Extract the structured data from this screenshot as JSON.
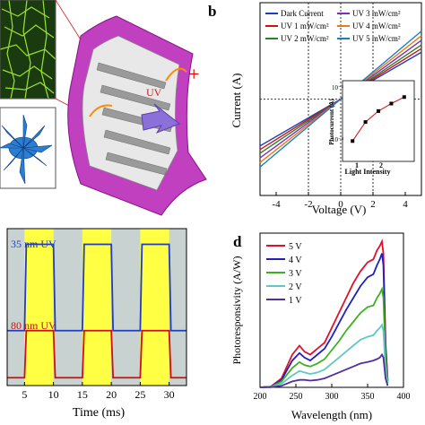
{
  "panels": {
    "a": {
      "uv_label": "UV",
      "plus_sign": "+"
    },
    "b": {
      "letter": "b"
    },
    "c": {
      "letter": ""
    },
    "d": {
      "letter": "d"
    }
  },
  "colors": {
    "dark": "#1f3fbf",
    "uv1": "#7b2fbf",
    "uv2": "#d01010",
    "uv3": "#2a7f2a",
    "uv4": "#f07810",
    "uv5": "#1a7fc0",
    "d5": "#e0102a",
    "d4": "#2020c0",
    "d3": "#40b020",
    "d2": "#60c8c0",
    "d1": "#5030a0",
    "yellow": "#ffff44",
    "gray": "#c8d2d0"
  },
  "chart_data": [
    {
      "type": "line",
      "panel": "b",
      "title": "",
      "xlabel": "Voltage (V)",
      "ylabel": "Current (A)",
      "xlim": [
        -5,
        5
      ],
      "ylim": [
        -0.021,
        0.021
      ],
      "x_ticks": [
        "-4",
        "-2",
        "0",
        "2",
        "4"
      ],
      "series": [
        {
          "name": "Dark Current",
          "color_key": "dark",
          "x": [
            -5,
            5
          ],
          "y": [
            -0.0102,
            0.0102
          ]
        },
        {
          "name": "UV 1 mW/cm²",
          "color_key": "uv2",
          "x": [
            -5,
            5
          ],
          "y": [
            -0.011,
            0.011
          ]
        },
        {
          "name": "UV 2 mW/cm²",
          "color_key": "uv3",
          "x": [
            -5,
            5
          ],
          "y": [
            -0.0118,
            0.0118
          ]
        },
        {
          "name": "UV 3 mW/cm²",
          "color_key": "uv1",
          "x": [
            -5,
            5
          ],
          "y": [
            -0.0128,
            0.0128
          ]
        },
        {
          "name": "UV 4 mW/cm²",
          "color_key": "uv4",
          "x": [
            -5,
            5
          ],
          "y": [
            -0.0138,
            0.0138
          ]
        },
        {
          "name": "UV 5 mW/cm²",
          "color_key": "uv5",
          "x": [
            -5,
            5
          ],
          "y": [
            -0.0148,
            0.0148
          ]
        }
      ],
      "legend": {
        "left": [
          "Dark Current",
          "UV 1 mW/cm²",
          "UV 2 mW/cm²"
        ],
        "right": [
          "UV 3 mW/cm²",
          "UV 4 mW/cm²",
          "UV 5 mW/cm²"
        ]
      },
      "inset": {
        "xlabel": "Light Intensity",
        "ylabel": "Photocurrent (A)",
        "y_ticks": [
          "10⁻³",
          "10⁻⁴"
        ],
        "x_ticks": [
          "1",
          "2"
        ],
        "x": [
          1,
          2,
          3,
          4,
          5
        ],
        "y_log": [
          -4.1,
          -3.72,
          -3.5,
          -3.35,
          -3.22
        ]
      }
    },
    {
      "type": "line",
      "panel": "c",
      "xlabel": "Time (ms)",
      "ylabel": "",
      "xlim": [
        2,
        33
      ],
      "x_ticks": [
        "5",
        "10",
        "15",
        "20",
        "25",
        "30"
      ],
      "annotations": [
        "35 nm UV",
        "80 nm UV"
      ],
      "on_intervals": [
        [
          5,
          10
        ],
        [
          15,
          20
        ],
        [
          25,
          30
        ]
      ],
      "series": [
        {
          "name": "35 nm UV",
          "color_key": "dark",
          "low": 0.35,
          "high": 0.9
        },
        {
          "name": "80 nm UV",
          "color_key": "uv2",
          "low": 0.05,
          "high": 0.35
        }
      ]
    },
    {
      "type": "line",
      "panel": "d",
      "xlabel": "Wavelength (nm)",
      "ylabel": "Photoresponsivity (A/W)",
      "xlim": [
        200,
        400
      ],
      "x_ticks": [
        "200",
        "250",
        "300",
        "350",
        "400"
      ],
      "ymax": 1.0,
      "x": [
        200,
        215,
        230,
        245,
        255,
        262,
        270,
        280,
        290,
        300,
        310,
        320,
        330,
        340,
        350,
        358,
        363,
        367,
        370,
        372,
        375,
        378
      ],
      "series": [
        {
          "name": "5 V",
          "color_key": "d5",
          "y": [
            0,
            0.005,
            0.06,
            0.22,
            0.28,
            0.24,
            0.22,
            0.26,
            0.3,
            0.4,
            0.5,
            0.6,
            0.7,
            0.78,
            0.84,
            0.86,
            0.92,
            0.95,
            0.98,
            0.9,
            0.3,
            0.05
          ]
        },
        {
          "name": "4 V",
          "color_key": "d4",
          "y": [
            0,
            0.004,
            0.05,
            0.18,
            0.23,
            0.2,
            0.18,
            0.22,
            0.26,
            0.34,
            0.43,
            0.52,
            0.6,
            0.68,
            0.74,
            0.76,
            0.82,
            0.86,
            0.9,
            0.82,
            0.26,
            0.04
          ]
        },
        {
          "name": "3 V",
          "color_key": "d3",
          "y": [
            0,
            0.003,
            0.04,
            0.13,
            0.17,
            0.15,
            0.14,
            0.16,
            0.19,
            0.25,
            0.31,
            0.38,
            0.44,
            0.5,
            0.54,
            0.55,
            0.6,
            0.63,
            0.66,
            0.6,
            0.2,
            0.03
          ]
        },
        {
          "name": "2 V",
          "color_key": "d2",
          "y": [
            0,
            0.002,
            0.025,
            0.08,
            0.11,
            0.1,
            0.09,
            0.1,
            0.12,
            0.16,
            0.2,
            0.24,
            0.28,
            0.32,
            0.34,
            0.35,
            0.38,
            0.4,
            0.42,
            0.38,
            0.12,
            0.02
          ]
        },
        {
          "name": "1 V",
          "color_key": "d1",
          "y": [
            0,
            0.001,
            0.01,
            0.04,
            0.05,
            0.05,
            0.045,
            0.05,
            0.06,
            0.08,
            0.1,
            0.12,
            0.14,
            0.16,
            0.17,
            0.18,
            0.19,
            0.2,
            0.22,
            0.2,
            0.06,
            0.01
          ]
        }
      ]
    }
  ]
}
